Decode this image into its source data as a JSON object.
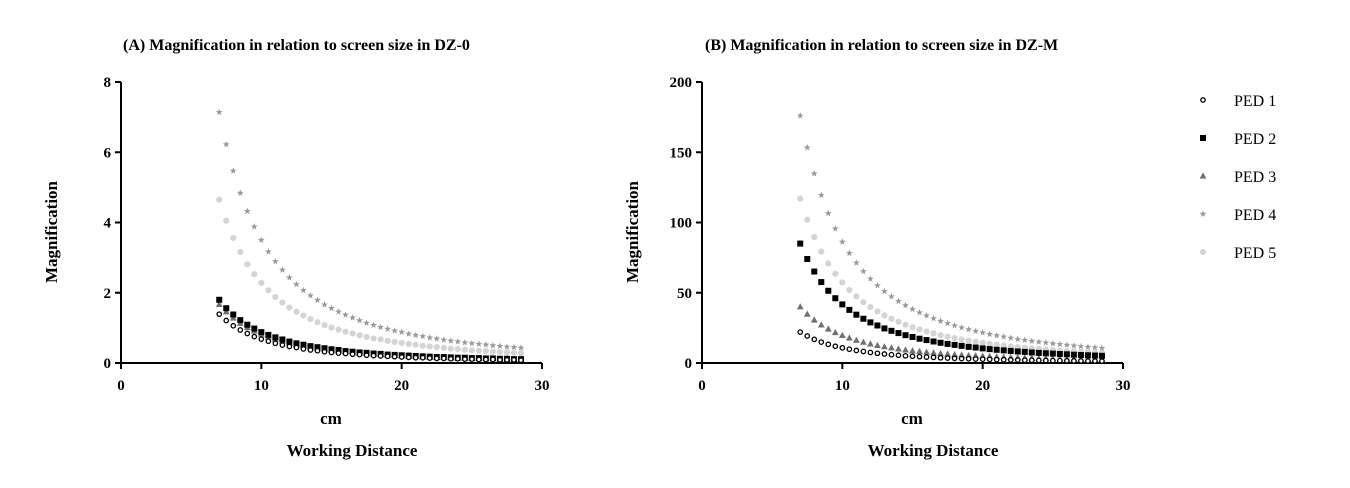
{
  "chart_data": [
    {
      "type": "scatter",
      "title": "(A)  Magnification in relation to screen size in DZ-0",
      "xlabel": "cm",
      "xlabel2": "Working Distance",
      "ylabel": "Magnification",
      "xlim": [
        0,
        30
      ],
      "ylim": [
        0,
        8
      ],
      "xticks": [
        "0",
        "10",
        "20",
        "30"
      ],
      "yticks": [
        "0",
        "2",
        "4",
        "6",
        "8"
      ],
      "x": [
        7,
        7.5,
        8,
        8.5,
        9,
        9.5,
        10,
        10.5,
        11,
        11.5,
        12,
        12.5,
        13,
        13.5,
        14,
        14.5,
        15,
        15.5,
        16,
        16.5,
        17,
        17.5,
        18,
        18.5,
        19,
        19.5,
        20,
        20.5,
        21,
        21.5,
        22,
        22.5,
        23,
        23.5,
        24,
        24.5,
        25,
        25.5,
        26,
        26.5,
        27,
        27.5,
        28,
        28.5
      ],
      "series": [
        {
          "name": "PED 1",
          "k": 68,
          "values": [
            1.39,
            1.21,
            1.06,
            0.94,
            0.84,
            0.75,
            0.68,
            0.62,
            0.56,
            0.51,
            0.47,
            0.44,
            0.4,
            0.37,
            0.35,
            0.32,
            0.3,
            0.28,
            0.27,
            0.25,
            0.24,
            0.22,
            0.21,
            0.2,
            0.19,
            0.18,
            0.17,
            0.16,
            0.15,
            0.15,
            0.14,
            0.13,
            0.13,
            0.12,
            0.12,
            0.11,
            0.11,
            0.1,
            0.1,
            0.1,
            0.09,
            0.09,
            0.09,
            0.08
          ]
        },
        {
          "name": "PED 2",
          "k": 88,
          "values": [
            1.8,
            1.56,
            1.38,
            1.22,
            1.09,
            0.98,
            0.88,
            0.8,
            0.73,
            0.67,
            0.61,
            0.56,
            0.52,
            0.48,
            0.45,
            0.42,
            0.39,
            0.37,
            0.34,
            0.32,
            0.3,
            0.29,
            0.27,
            0.26,
            0.24,
            0.23,
            0.22,
            0.21,
            0.2,
            0.19,
            0.18,
            0.17,
            0.17,
            0.16,
            0.15,
            0.15,
            0.14,
            0.14,
            0.13,
            0.13,
            0.12,
            0.12,
            0.11,
            0.11
          ]
        },
        {
          "name": "PED 3",
          "k": 82,
          "values": [
            1.67,
            1.46,
            1.28,
            1.13,
            1.01,
            0.91,
            0.82,
            0.74,
            0.68,
            0.62,
            0.57,
            0.52,
            0.49,
            0.45,
            0.42,
            0.39,
            0.36,
            0.34,
            0.32,
            0.3,
            0.28,
            0.27,
            0.25,
            0.24,
            0.23,
            0.22,
            0.21,
            0.2,
            0.19,
            0.18,
            0.17,
            0.16,
            0.16,
            0.15,
            0.14,
            0.14,
            0.13,
            0.13,
            0.12,
            0.12,
            0.11,
            0.11,
            0.1,
            0.1
          ]
        },
        {
          "name": "PED 4",
          "k": 350,
          "values": [
            7.14,
            6.22,
            5.47,
            4.84,
            4.32,
            3.88,
            3.5,
            3.17,
            2.89,
            2.65,
            2.43,
            2.24,
            2.07,
            1.92,
            1.79,
            1.66,
            1.56,
            1.46,
            1.37,
            1.29,
            1.21,
            1.14,
            1.08,
            1.02,
            0.97,
            0.92,
            0.88,
            0.83,
            0.79,
            0.76,
            0.72,
            0.69,
            0.66,
            0.63,
            0.61,
            0.58,
            0.56,
            0.54,
            0.52,
            0.5,
            0.48,
            0.46,
            0.45,
            0.43
          ]
        },
        {
          "name": "PED 5",
          "k": 228,
          "values": [
            4.65,
            4.05,
            3.56,
            3.16,
            2.81,
            2.53,
            2.28,
            2.07,
            1.88,
            1.72,
            1.58,
            1.46,
            1.35,
            1.25,
            1.16,
            1.08,
            1.01,
            0.95,
            0.89,
            0.84,
            0.79,
            0.74,
            0.7,
            0.67,
            0.63,
            0.6,
            0.57,
            0.54,
            0.52,
            0.49,
            0.47,
            0.45,
            0.43,
            0.41,
            0.4,
            0.38,
            0.36,
            0.35,
            0.34,
            0.32,
            0.31,
            0.3,
            0.29,
            0.28
          ]
        }
      ]
    },
    {
      "type": "scatter",
      "title": "(B)  Magnification in relation to screen size in DZ-M",
      "xlabel": "cm",
      "xlabel2": "Working Distance",
      "ylabel": "Magnification",
      "xlim": [
        0,
        30
      ],
      "ylim": [
        0,
        200
      ],
      "xticks": [
        "0",
        "10",
        "20",
        "30"
      ],
      "yticks": [
        "0",
        "50",
        "100",
        "150",
        "200"
      ],
      "x": [
        7,
        7.5,
        8,
        8.5,
        9,
        9.5,
        10,
        10.5,
        11,
        11.5,
        12,
        12.5,
        13,
        13.5,
        14,
        14.5,
        15,
        15.5,
        16,
        16.5,
        17,
        17.5,
        18,
        18.5,
        19,
        19.5,
        20,
        20.5,
        21,
        21.5,
        22,
        22.5,
        23,
        23.5,
        24,
        24.5,
        25,
        25.5,
        26,
        26.5,
        27,
        27.5,
        28,
        28.5
      ],
      "series": [
        {
          "name": "PED 1",
          "k": 1078,
          "values": [
            22.0,
            19.2,
            16.8,
            14.9,
            13.3,
            11.9,
            10.8,
            9.8,
            8.9,
            8.2,
            7.5,
            6.9,
            6.4,
            5.9,
            5.5,
            5.1,
            4.8,
            4.5,
            4.2,
            4.0,
            3.7,
            3.5,
            3.3,
            3.1,
            3.0,
            2.8,
            2.7,
            2.6,
            2.4,
            2.3,
            2.2,
            2.1,
            2.0,
            2.0,
            1.9,
            1.8,
            1.7,
            1.7,
            1.6,
            1.5,
            1.5,
            1.4,
            1.4,
            1.3
          ]
        },
        {
          "name": "PED 2",
          "k": 4165,
          "values": [
            85.0,
            74.0,
            65.1,
            57.6,
            51.4,
            46.1,
            41.7,
            37.8,
            34.4,
            31.5,
            28.9,
            26.7,
            24.6,
            22.9,
            21.3,
            19.8,
            18.5,
            17.3,
            16.3,
            15.3,
            14.4,
            13.6,
            12.9,
            12.2,
            11.5,
            11.0,
            10.4,
            9.9,
            9.4,
            9.0,
            8.6,
            8.2,
            7.9,
            7.5,
            7.2,
            6.9,
            6.7,
            6.4,
            6.2,
            5.9,
            5.7,
            5.5,
            5.3,
            5.1
          ]
        },
        {
          "name": "PED 3",
          "k": 1960,
          "values": [
            40.0,
            34.8,
            30.6,
            27.1,
            24.2,
            21.7,
            19.6,
            17.8,
            16.2,
            14.8,
            13.6,
            12.5,
            11.6,
            10.8,
            10.0,
            9.3,
            8.7,
            8.2,
            7.7,
            7.2,
            6.8,
            6.4,
            6.0,
            5.7,
            5.4,
            5.2,
            4.9,
            4.7,
            4.4,
            4.2,
            4.0,
            3.9,
            3.7,
            3.5,
            3.4,
            3.3,
            3.1,
            3.0,
            2.9,
            2.8,
            2.7,
            2.6,
            2.5,
            2.4
          ]
        },
        {
          "name": "PED 4",
          "k": 8624,
          "values": [
            176.0,
            153.3,
            134.8,
            119.4,
            106.5,
            95.6,
            86.2,
            78.2,
            71.3,
            65.2,
            59.9,
            55.2,
            51.0,
            47.3,
            44.0,
            41.0,
            38.3,
            35.9,
            33.7,
            31.7,
            29.8,
            28.2,
            26.6,
            25.2,
            23.9,
            22.7,
            21.6,
            20.5,
            19.6,
            18.7,
            17.8,
            17.0,
            16.3,
            15.6,
            15.0,
            14.4,
            13.8,
            13.3,
            12.8,
            12.3,
            11.8,
            11.4,
            11.0,
            10.6
          ]
        },
        {
          "name": "PED 5",
          "k": 5733,
          "values": [
            117.0,
            101.9,
            89.6,
            79.3,
            70.8,
            63.5,
            57.3,
            52.0,
            47.4,
            43.3,
            39.8,
            36.7,
            33.9,
            31.5,
            29.3,
            27.3,
            25.5,
            23.9,
            22.4,
            21.1,
            19.8,
            18.7,
            17.7,
            16.8,
            15.9,
            15.1,
            14.3,
            13.6,
            13.0,
            12.4,
            11.8,
            11.3,
            10.8,
            10.4,
            10.0,
            9.6,
            9.2,
            8.8,
            8.5,
            8.2,
            7.9,
            7.6,
            7.3,
            7.1
          ]
        }
      ]
    }
  ],
  "legend": {
    "placement": "right",
    "items": [
      {
        "label": "PED 1",
        "marker": "open-circle",
        "color": "#000000"
      },
      {
        "label": "PED 2",
        "marker": "square",
        "color": "#000000"
      },
      {
        "label": "PED 3",
        "marker": "triangle",
        "color": "#707070"
      },
      {
        "label": "PED 4",
        "marker": "star",
        "color": "#9a9a9a"
      },
      {
        "label": "PED 5",
        "marker": "circle",
        "color": "#d4d4d4"
      }
    ]
  }
}
